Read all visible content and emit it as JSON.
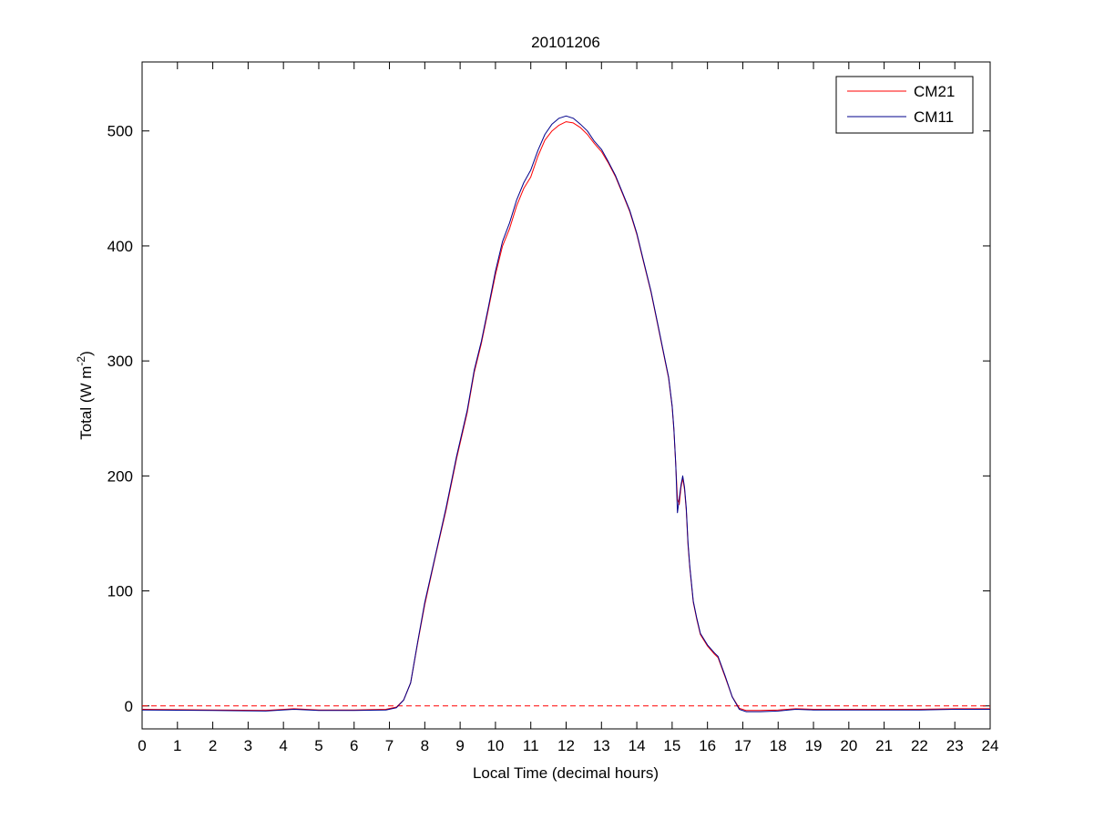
{
  "chart_data": {
    "type": "line",
    "title": "20101206",
    "xlabel": "Local Time (decimal hours)",
    "ylabel": {
      "main": "Total (W m",
      "superscript": "-2",
      "close": ")"
    },
    "xlim": [
      0,
      24
    ],
    "ylim": [
      -20,
      560
    ],
    "xticks": [
      0,
      1,
      2,
      3,
      4,
      5,
      6,
      7,
      8,
      9,
      10,
      11,
      12,
      13,
      14,
      15,
      16,
      17,
      18,
      19,
      20,
      21,
      22,
      23,
      24
    ],
    "xtick_labels": [
      "0",
      "1",
      "2",
      "3",
      "4",
      "5",
      "6",
      "7",
      "8",
      "9",
      "10",
      "11",
      "12",
      "13",
      "14",
      "15",
      "16",
      "17",
      "18",
      "19",
      "20",
      "21",
      "22",
      "23",
      "24"
    ],
    "yticks": [
      0,
      100,
      200,
      300,
      400,
      500
    ],
    "ytick_labels": [
      "0",
      "100",
      "200",
      "300",
      "400",
      "500"
    ],
    "grid": false,
    "legend_position": "top-right",
    "reference_line": {
      "y": 0,
      "style": "dashed",
      "color": "#ff0000"
    },
    "series": [
      {
        "name": "CM21",
        "color": "#ff0000",
        "points": [
          [
            0,
            -3
          ],
          [
            2,
            -3.5
          ],
          [
            3.5,
            -4
          ],
          [
            4.3,
            -2.5
          ],
          [
            5,
            -3.5
          ],
          [
            6,
            -3.5
          ],
          [
            6.9,
            -3
          ],
          [
            7.2,
            -1
          ],
          [
            7.4,
            5
          ],
          [
            7.6,
            20
          ],
          [
            7.8,
            55
          ],
          [
            8,
            88
          ],
          [
            8.3,
            130
          ],
          [
            8.6,
            170
          ],
          [
            8.9,
            215
          ],
          [
            9.2,
            255
          ],
          [
            9.4,
            290
          ],
          [
            9.6,
            315
          ],
          [
            9.8,
            345
          ],
          [
            10,
            375
          ],
          [
            10.2,
            400
          ],
          [
            10.4,
            415
          ],
          [
            10.6,
            435
          ],
          [
            10.8,
            450
          ],
          [
            11,
            460
          ],
          [
            11.2,
            478
          ],
          [
            11.4,
            492
          ],
          [
            11.6,
            500
          ],
          [
            11.8,
            505
          ],
          [
            12,
            508
          ],
          [
            12.2,
            507
          ],
          [
            12.4,
            503
          ],
          [
            12.6,
            497
          ],
          [
            12.8,
            489
          ],
          [
            13,
            482
          ],
          [
            13.2,
            472
          ],
          [
            13.4,
            460
          ],
          [
            13.6,
            445
          ],
          [
            13.8,
            430
          ],
          [
            14,
            410
          ],
          [
            14.2,
            385
          ],
          [
            14.4,
            360
          ],
          [
            14.6,
            330
          ],
          [
            14.8,
            300
          ],
          [
            14.9,
            285
          ],
          [
            15,
            260
          ],
          [
            15.05,
            240
          ],
          [
            15.1,
            210
          ],
          [
            15.15,
            180
          ],
          [
            15.2,
            175
          ],
          [
            15.25,
            190
          ],
          [
            15.3,
            198
          ],
          [
            15.35,
            188
          ],
          [
            15.4,
            170
          ],
          [
            15.45,
            140
          ],
          [
            15.5,
            120
          ],
          [
            15.6,
            90
          ],
          [
            15.7,
            75
          ],
          [
            15.8,
            62
          ],
          [
            16,
            52
          ],
          [
            16.2,
            45
          ],
          [
            16.3,
            42
          ],
          [
            16.5,
            25
          ],
          [
            16.7,
            8
          ],
          [
            16.9,
            -2
          ],
          [
            17.1,
            -4
          ],
          [
            17.5,
            -4
          ],
          [
            18,
            -3.5
          ],
          [
            18.5,
            -2.5
          ],
          [
            19,
            -3
          ],
          [
            20,
            -3
          ],
          [
            21,
            -3
          ],
          [
            22,
            -3
          ],
          [
            23,
            -2.5
          ],
          [
            24,
            -2.5
          ]
        ]
      },
      {
        "name": "CM11",
        "color": "#00008b",
        "points": [
          [
            0,
            -3.5
          ],
          [
            2,
            -4
          ],
          [
            3.5,
            -4.5
          ],
          [
            4.3,
            -3
          ],
          [
            5,
            -4
          ],
          [
            6,
            -4
          ],
          [
            6.9,
            -3.5
          ],
          [
            7.2,
            -1.5
          ],
          [
            7.4,
            5
          ],
          [
            7.6,
            20
          ],
          [
            7.8,
            56
          ],
          [
            8,
            90
          ],
          [
            8.3,
            131
          ],
          [
            8.6,
            172
          ],
          [
            8.9,
            217
          ],
          [
            9.2,
            257
          ],
          [
            9.4,
            292
          ],
          [
            9.6,
            317
          ],
          [
            9.8,
            347
          ],
          [
            10,
            378
          ],
          [
            10.2,
            404
          ],
          [
            10.4,
            420
          ],
          [
            10.6,
            440
          ],
          [
            10.8,
            455
          ],
          [
            11,
            466
          ],
          [
            11.2,
            483
          ],
          [
            11.4,
            497
          ],
          [
            11.6,
            506
          ],
          [
            11.8,
            511
          ],
          [
            12,
            513
          ],
          [
            12.2,
            511
          ],
          [
            12.4,
            506
          ],
          [
            12.6,
            500
          ],
          [
            12.8,
            491
          ],
          [
            13,
            484
          ],
          [
            13.2,
            473
          ],
          [
            13.4,
            461
          ],
          [
            13.6,
            446
          ],
          [
            13.8,
            431
          ],
          [
            14,
            411
          ],
          [
            14.2,
            386
          ],
          [
            14.4,
            361
          ],
          [
            14.6,
            331
          ],
          [
            14.8,
            301
          ],
          [
            14.9,
            286
          ],
          [
            15,
            261
          ],
          [
            15.05,
            241
          ],
          [
            15.1,
            211
          ],
          [
            15.15,
            168
          ],
          [
            15.2,
            180
          ],
          [
            15.25,
            192
          ],
          [
            15.3,
            200
          ],
          [
            15.35,
            190
          ],
          [
            15.4,
            172
          ],
          [
            15.45,
            142
          ],
          [
            15.5,
            121
          ],
          [
            15.6,
            91
          ],
          [
            15.7,
            76
          ],
          [
            15.8,
            63
          ],
          [
            16,
            53
          ],
          [
            16.2,
            46
          ],
          [
            16.3,
            43
          ],
          [
            16.5,
            26
          ],
          [
            16.7,
            8
          ],
          [
            16.9,
            -3
          ],
          [
            17.1,
            -5
          ],
          [
            17.5,
            -5
          ],
          [
            18,
            -4.5
          ],
          [
            18.5,
            -3
          ],
          [
            19,
            -3.5
          ],
          [
            20,
            -3.5
          ],
          [
            21,
            -3.5
          ],
          [
            22,
            -3.5
          ],
          [
            23,
            -3
          ],
          [
            24,
            -3
          ]
        ]
      }
    ]
  }
}
